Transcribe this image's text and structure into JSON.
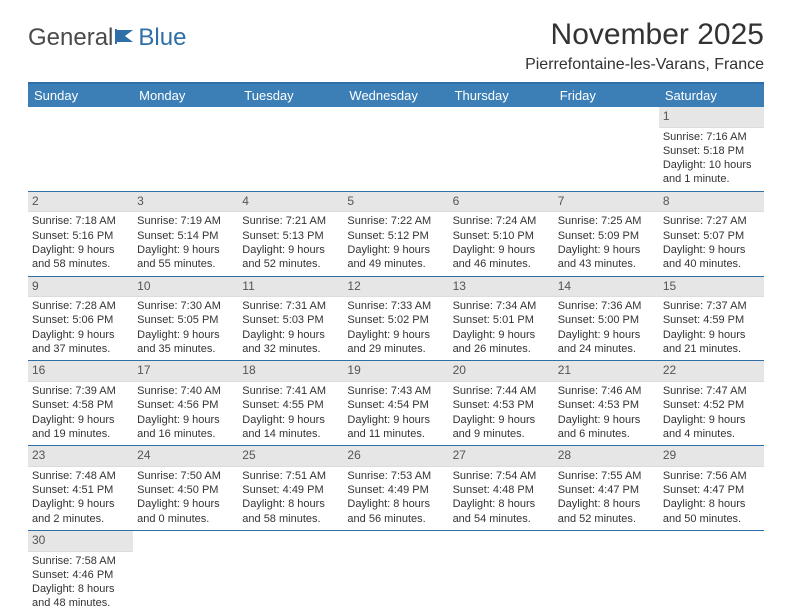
{
  "brand": {
    "part1": "General",
    "part2": "Blue"
  },
  "title": "November 2025",
  "location": "Pierrefontaine-les-Varans, France",
  "day_names": [
    "Sunday",
    "Monday",
    "Tuesday",
    "Wednesday",
    "Thursday",
    "Friday",
    "Saturday"
  ],
  "colors": {
    "header_bg": "#3b7fb6",
    "header_border": "#2f6fa7",
    "daynum_bg": "#e6e6e6",
    "text": "#333333",
    "logo_gray": "#4a4a4a",
    "logo_blue": "#2f6fa7"
  },
  "weeks": [
    [
      {
        "blank": true
      },
      {
        "blank": true
      },
      {
        "blank": true
      },
      {
        "blank": true
      },
      {
        "blank": true
      },
      {
        "blank": true
      },
      {
        "day": "1",
        "sunrise": "Sunrise: 7:16 AM",
        "sunset": "Sunset: 5:18 PM",
        "daylight": "Daylight: 10 hours and 1 minute."
      }
    ],
    [
      {
        "day": "2",
        "sunrise": "Sunrise: 7:18 AM",
        "sunset": "Sunset: 5:16 PM",
        "daylight": "Daylight: 9 hours and 58 minutes."
      },
      {
        "day": "3",
        "sunrise": "Sunrise: 7:19 AM",
        "sunset": "Sunset: 5:14 PM",
        "daylight": "Daylight: 9 hours and 55 minutes."
      },
      {
        "day": "4",
        "sunrise": "Sunrise: 7:21 AM",
        "sunset": "Sunset: 5:13 PM",
        "daylight": "Daylight: 9 hours and 52 minutes."
      },
      {
        "day": "5",
        "sunrise": "Sunrise: 7:22 AM",
        "sunset": "Sunset: 5:12 PM",
        "daylight": "Daylight: 9 hours and 49 minutes."
      },
      {
        "day": "6",
        "sunrise": "Sunrise: 7:24 AM",
        "sunset": "Sunset: 5:10 PM",
        "daylight": "Daylight: 9 hours and 46 minutes."
      },
      {
        "day": "7",
        "sunrise": "Sunrise: 7:25 AM",
        "sunset": "Sunset: 5:09 PM",
        "daylight": "Daylight: 9 hours and 43 minutes."
      },
      {
        "day": "8",
        "sunrise": "Sunrise: 7:27 AM",
        "sunset": "Sunset: 5:07 PM",
        "daylight": "Daylight: 9 hours and 40 minutes."
      }
    ],
    [
      {
        "day": "9",
        "sunrise": "Sunrise: 7:28 AM",
        "sunset": "Sunset: 5:06 PM",
        "daylight": "Daylight: 9 hours and 37 minutes."
      },
      {
        "day": "10",
        "sunrise": "Sunrise: 7:30 AM",
        "sunset": "Sunset: 5:05 PM",
        "daylight": "Daylight: 9 hours and 35 minutes."
      },
      {
        "day": "11",
        "sunrise": "Sunrise: 7:31 AM",
        "sunset": "Sunset: 5:03 PM",
        "daylight": "Daylight: 9 hours and 32 minutes."
      },
      {
        "day": "12",
        "sunrise": "Sunrise: 7:33 AM",
        "sunset": "Sunset: 5:02 PM",
        "daylight": "Daylight: 9 hours and 29 minutes."
      },
      {
        "day": "13",
        "sunrise": "Sunrise: 7:34 AM",
        "sunset": "Sunset: 5:01 PM",
        "daylight": "Daylight: 9 hours and 26 minutes."
      },
      {
        "day": "14",
        "sunrise": "Sunrise: 7:36 AM",
        "sunset": "Sunset: 5:00 PM",
        "daylight": "Daylight: 9 hours and 24 minutes."
      },
      {
        "day": "15",
        "sunrise": "Sunrise: 7:37 AM",
        "sunset": "Sunset: 4:59 PM",
        "daylight": "Daylight: 9 hours and 21 minutes."
      }
    ],
    [
      {
        "day": "16",
        "sunrise": "Sunrise: 7:39 AM",
        "sunset": "Sunset: 4:58 PM",
        "daylight": "Daylight: 9 hours and 19 minutes."
      },
      {
        "day": "17",
        "sunrise": "Sunrise: 7:40 AM",
        "sunset": "Sunset: 4:56 PM",
        "daylight": "Daylight: 9 hours and 16 minutes."
      },
      {
        "day": "18",
        "sunrise": "Sunrise: 7:41 AM",
        "sunset": "Sunset: 4:55 PM",
        "daylight": "Daylight: 9 hours and 14 minutes."
      },
      {
        "day": "19",
        "sunrise": "Sunrise: 7:43 AM",
        "sunset": "Sunset: 4:54 PM",
        "daylight": "Daylight: 9 hours and 11 minutes."
      },
      {
        "day": "20",
        "sunrise": "Sunrise: 7:44 AM",
        "sunset": "Sunset: 4:53 PM",
        "daylight": "Daylight: 9 hours and 9 minutes."
      },
      {
        "day": "21",
        "sunrise": "Sunrise: 7:46 AM",
        "sunset": "Sunset: 4:53 PM",
        "daylight": "Daylight: 9 hours and 6 minutes."
      },
      {
        "day": "22",
        "sunrise": "Sunrise: 7:47 AM",
        "sunset": "Sunset: 4:52 PM",
        "daylight": "Daylight: 9 hours and 4 minutes."
      }
    ],
    [
      {
        "day": "23",
        "sunrise": "Sunrise: 7:48 AM",
        "sunset": "Sunset: 4:51 PM",
        "daylight": "Daylight: 9 hours and 2 minutes."
      },
      {
        "day": "24",
        "sunrise": "Sunrise: 7:50 AM",
        "sunset": "Sunset: 4:50 PM",
        "daylight": "Daylight: 9 hours and 0 minutes."
      },
      {
        "day": "25",
        "sunrise": "Sunrise: 7:51 AM",
        "sunset": "Sunset: 4:49 PM",
        "daylight": "Daylight: 8 hours and 58 minutes."
      },
      {
        "day": "26",
        "sunrise": "Sunrise: 7:53 AM",
        "sunset": "Sunset: 4:49 PM",
        "daylight": "Daylight: 8 hours and 56 minutes."
      },
      {
        "day": "27",
        "sunrise": "Sunrise: 7:54 AM",
        "sunset": "Sunset: 4:48 PM",
        "daylight": "Daylight: 8 hours and 54 minutes."
      },
      {
        "day": "28",
        "sunrise": "Sunrise: 7:55 AM",
        "sunset": "Sunset: 4:47 PM",
        "daylight": "Daylight: 8 hours and 52 minutes."
      },
      {
        "day": "29",
        "sunrise": "Sunrise: 7:56 AM",
        "sunset": "Sunset: 4:47 PM",
        "daylight": "Daylight: 8 hours and 50 minutes."
      }
    ],
    [
      {
        "day": "30",
        "sunrise": "Sunrise: 7:58 AM",
        "sunset": "Sunset: 4:46 PM",
        "daylight": "Daylight: 8 hours and 48 minutes."
      },
      {
        "blank": true
      },
      {
        "blank": true
      },
      {
        "blank": true
      },
      {
        "blank": true
      },
      {
        "blank": true
      },
      {
        "blank": true
      }
    ]
  ]
}
